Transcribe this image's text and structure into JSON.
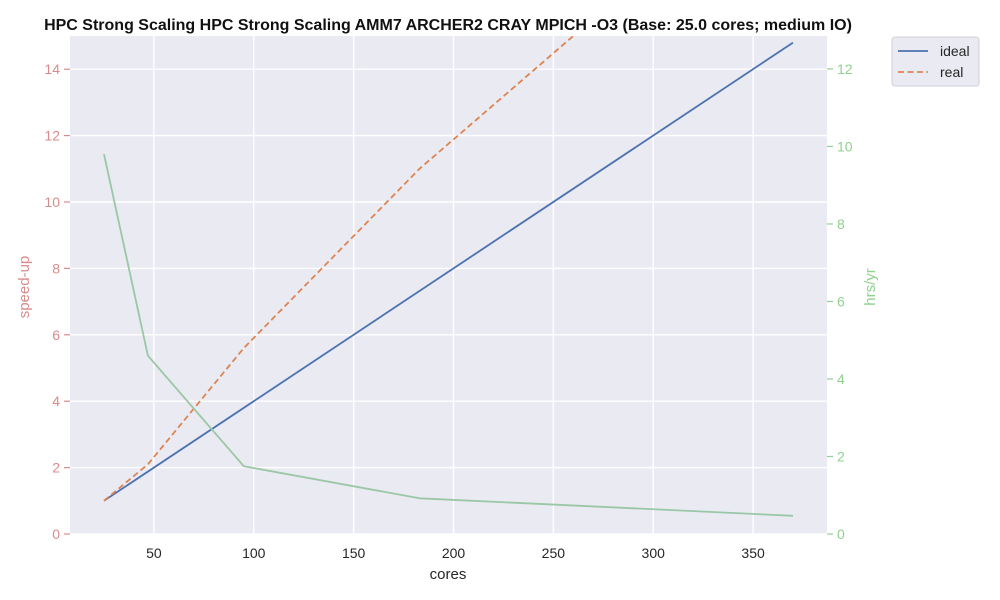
{
  "chart_data": {
    "type": "line",
    "title": "HPC Strong Scaling HPC Strong Scaling AMM7 ARCHER2 CRAY MPICH -O3 (Base: 25.0 cores; medium IO)",
    "xlabel": "cores",
    "ylabel_left": "speed-up",
    "ylabel_right": "hrs/yr",
    "xlim": [
      8,
      387
    ],
    "ylim_left": [
      0,
      15
    ],
    "ylim_right": [
      0,
      12.85
    ],
    "xticks": [
      50,
      100,
      150,
      200,
      250,
      300,
      350
    ],
    "yticks_left": [
      0,
      2,
      4,
      6,
      8,
      10,
      12,
      14
    ],
    "yticks_right": [
      0,
      2,
      4,
      6,
      8,
      10,
      12
    ],
    "grid": true,
    "legend_position": "outside-top-right",
    "series": [
      {
        "name": "ideal",
        "axis": "left",
        "style": "solid",
        "color": "#4c72b0",
        "x": [
          25,
          370
        ],
        "y": [
          1.0,
          14.8
        ]
      },
      {
        "name": "real",
        "axis": "left",
        "style": "dashed",
        "color": "#dd8452",
        "x": [
          25,
          47,
          95,
          183,
          260
        ],
        "y": [
          1.0,
          2.1,
          5.6,
          11.0,
          15.0
        ]
      },
      {
        "axis": "right",
        "style": "solid",
        "color": "#9ac7a5",
        "x": [
          25,
          47,
          95,
          183,
          370
        ],
        "y": [
          9.8,
          4.6,
          1.75,
          0.92,
          0.47
        ]
      }
    ],
    "colors": {
      "plot_bg": "#eaeaf2",
      "grid": "#ffffff",
      "left_axis": "#d98c8c",
      "right_axis": "#8fd18f",
      "text": "#262626"
    }
  }
}
